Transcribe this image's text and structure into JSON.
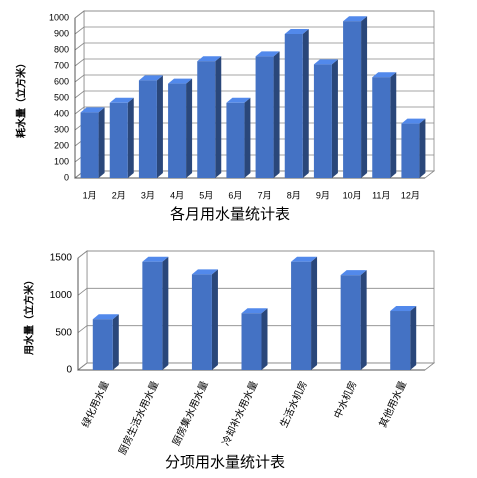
{
  "chart_data": [
    {
      "type": "bar3d",
      "title": "各月用水量统计表",
      "y_label": "耗水量（立方米）",
      "categories": [
        "1月",
        "2月",
        "3月",
        "4月",
        "5月",
        "6月",
        "7月",
        "8月",
        "9月",
        "10月",
        "11月",
        "12月"
      ],
      "values": [
        410,
        470,
        610,
        590,
        730,
        470,
        760,
        900,
        710,
        980,
        630,
        340
      ],
      "color": "#4472c4",
      "ylim": [
        0,
        1000
      ],
      "yticks": [
        0,
        100,
        200,
        300,
        400,
        500,
        600,
        700,
        800,
        900,
        1000
      ],
      "grid": true
    },
    {
      "type": "bar3d",
      "title": "分项用水量统计表",
      "y_label": "用水量（立方米）",
      "categories": [
        "绿化用水量",
        "厨房生活水用水量",
        "厨房集水用水量",
        "冷却补水用水量",
        "生活水机房",
        "中水机房",
        "其他用水量"
      ],
      "values": [
        680,
        1450,
        1280,
        760,
        1450,
        1270,
        790
      ],
      "color": "#4472c4",
      "ylim": [
        0,
        1500
      ],
      "yticks": [
        0,
        500,
        1000,
        1500
      ],
      "grid": true
    }
  ]
}
